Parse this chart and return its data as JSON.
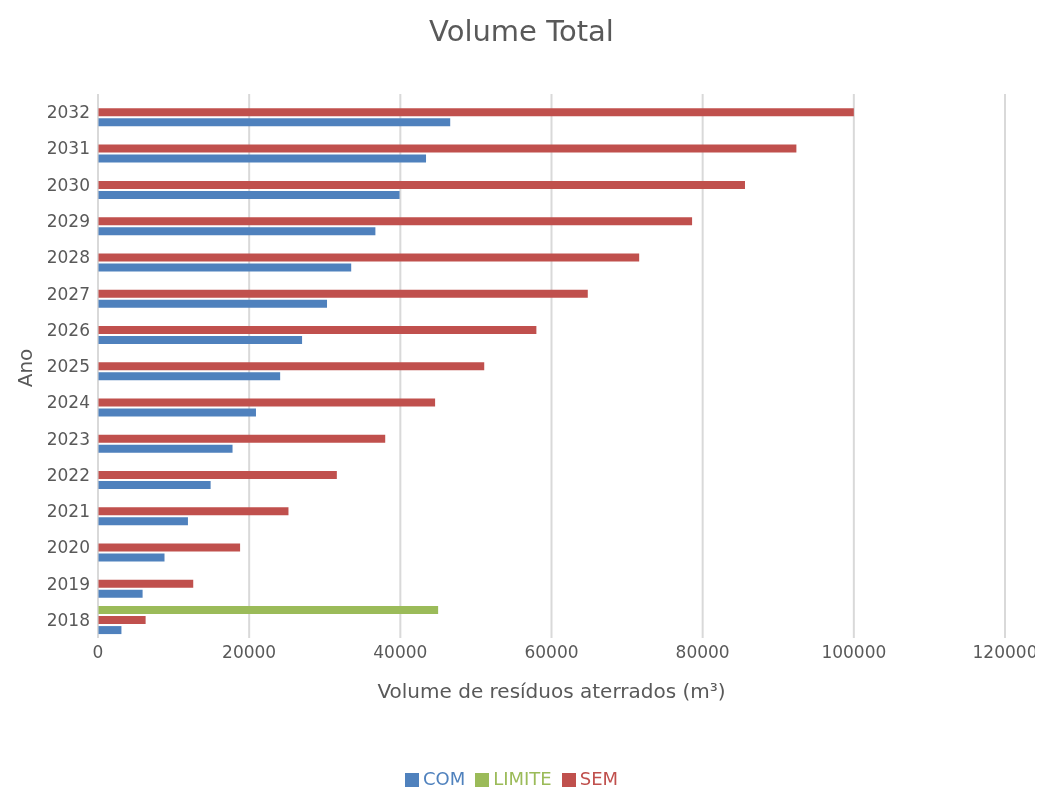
{
  "chart_data": {
    "type": "bar",
    "orientation": "horizontal",
    "title": "Volume Total",
    "xlabel": "Volume de resíduos aterrados (m³)",
    "ylabel": "Ano",
    "categories": [
      "2032",
      "2031",
      "2030",
      "2029",
      "2028",
      "2027",
      "2026",
      "2025",
      "2024",
      "2023",
      "2022",
      "2021",
      "2020",
      "2019",
      "2018"
    ],
    "series": [
      {
        "name": "LIMITE",
        "color": "#9bbb59",
        "values": [
          null,
          null,
          null,
          null,
          null,
          null,
          null,
          null,
          null,
          null,
          null,
          null,
          null,
          null,
          45000
        ]
      },
      {
        "name": "SEM",
        "color": "#c0504d",
        "values": [
          100000,
          92400,
          85600,
          78600,
          71600,
          64800,
          58000,
          51100,
          44600,
          38000,
          31600,
          25200,
          18800,
          12600,
          6300
        ]
      },
      {
        "name": "COM",
        "color": "#4f81bd",
        "values": [
          46600,
          43400,
          39900,
          36700,
          33500,
          30300,
          27000,
          24100,
          20900,
          17800,
          14900,
          11900,
          8800,
          5900,
          3100
        ]
      }
    ],
    "xlim": [
      0,
      120000
    ],
    "xticks": [
      0,
      20000,
      40000,
      60000,
      80000,
      100000,
      120000
    ],
    "grid": "x",
    "legend": "bottom"
  }
}
